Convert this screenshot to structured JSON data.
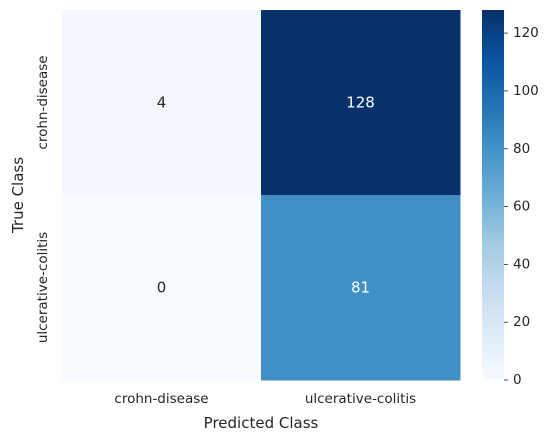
{
  "chart_data": {
    "type": "heatmap",
    "title": "",
    "xlabel": "Predicted Class",
    "ylabel": "True Class",
    "x_categories": [
      "crohn-disease",
      "ulcerative-colitis"
    ],
    "y_categories": [
      "crohn-disease",
      "ulcerative-colitis"
    ],
    "values": [
      [
        4,
        128
      ],
      [
        0,
        81
      ]
    ],
    "colormap": "Blues",
    "colorbar": {
      "min": 0,
      "max": 128,
      "ticks": [
        0,
        20,
        40,
        60,
        80,
        100,
        120
      ]
    },
    "grid": false,
    "annotated": true
  }
}
